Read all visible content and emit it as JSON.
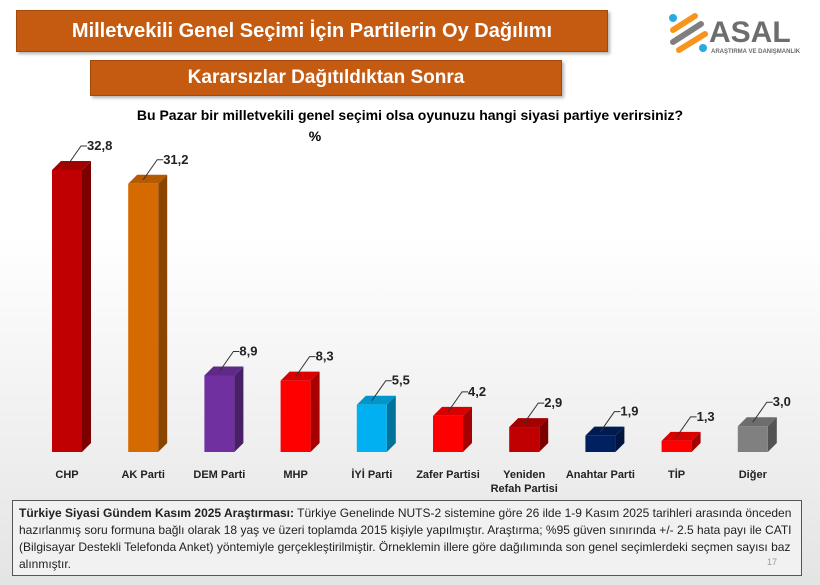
{
  "header": {
    "title": "Milletvekili Genel Seçimi İçin Partilerin Oy Dağılımı",
    "subtitle": "Kararsızlar Dağıtıldıktan Sonra"
  },
  "logo": {
    "name": "ASAL",
    "tagline": "ARAŞTIRMA VE DANIŞMANLIK",
    "colors": [
      "#f7941d",
      "#29abe2",
      "#7f7f7f"
    ]
  },
  "chart_data": {
    "type": "bar",
    "title": "Bu Pazar bir milletvekili genel seçimi olsa oyunuzu hangi siyasi partiye verirsiniz?",
    "ylabel": "%",
    "ylim": [
      0,
      35
    ],
    "grid": false,
    "categories": [
      "CHP",
      "AK Parti",
      "DEM Parti",
      "MHP",
      "İYİ Parti",
      "Zafer Partisi",
      "Yeniden Refah Partisi",
      "Anahtar Parti",
      "TİP",
      "Diğer"
    ],
    "values": [
      32.8,
      31.2,
      8.9,
      8.3,
      5.5,
      4.2,
      2.9,
      1.9,
      1.3,
      3.0
    ],
    "value_labels": [
      "32,8",
      "31,2",
      "8,9",
      "8,3",
      "5,5",
      "4,2",
      "2,9",
      "1,9",
      "1,3",
      "3,0"
    ],
    "colors": [
      "#c00000",
      "#d46a00",
      "#7030a0",
      "#ff0000",
      "#00b0f0",
      "#ff0000",
      "#c00000",
      "#002060",
      "#ff0000",
      "#808080"
    ]
  },
  "note": {
    "bold": "Türkiye Siyasi Gündem Kasım 2025 Araştırması:",
    "text": " Türkiye Genelinde NUTS-2 sistemine göre 26 ilde 1-9 Kasım 2025 tarihleri arasında önceden hazırlanmış soru formuna bağlı olarak 18 yaş ve üzeri toplamda 2015 kişiyle yapılmıştır. Araştırma; %95 güven sınırında +/- 2.5 hata payı ile CATI (Bilgisayar Destekli Telefonda Anket) yöntemiyle gerçekleştirilmiştir. Örneklemin illere göre dağılımında son genel seçimlerdeki seçmen sayısı baz alınmıştır.",
    "page": "17"
  }
}
